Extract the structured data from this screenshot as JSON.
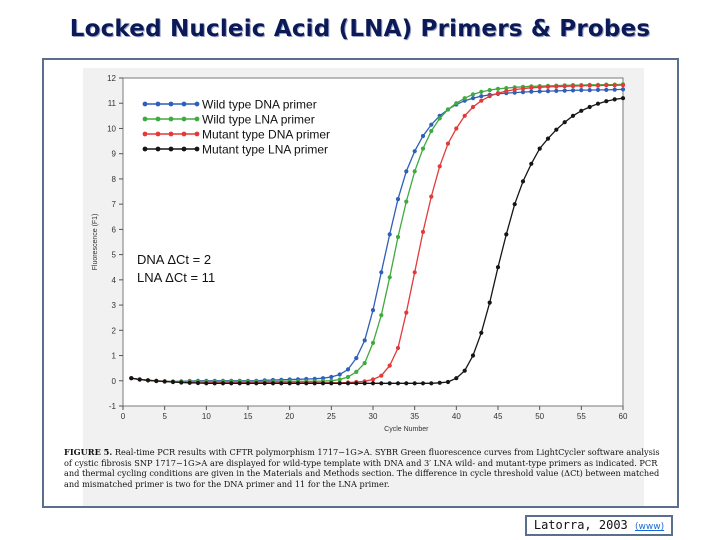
{
  "slide": {
    "title": "Locked Nucleic Acid (LNA) Primers & Probes",
    "citation": "Latorra, 2003",
    "citation_link": "(www)"
  },
  "caption": {
    "label": "FIGURE 5.",
    "text": "Real-time PCR results with CFTR polymorphism 1717−1G>A. SYBR Green fluorescence curves from LightCycler software analysis of cystic fibrosis SNP 1717−1G>A are displayed for wild-type template with DNA and 3′ LNA wild- and mutant-type primers as indicated. PCR and thermal cycling conditions are given in the Materials and Methods section. The difference in cycle threshold value (ΔCt) between matched and mismatched primer is two for the DNA primer and 11 for the LNA primer."
  },
  "colors": {
    "wild_dna": "#2f5fb8",
    "wild_lna": "#3faa3f",
    "mutant_dna": "#e23a3a",
    "mutant_lna": "#151515",
    "title": "#0b1a57",
    "frame": "#5a6f8e"
  },
  "chart_data": {
    "type": "line",
    "xlabel": "Cycle Number",
    "ylabel": "Fluorescence (F1)",
    "xlim": [
      0,
      60
    ],
    "ylim": [
      -1,
      12
    ],
    "xticks": [
      0,
      5,
      10,
      15,
      20,
      25,
      30,
      35,
      40,
      45,
      50,
      55,
      60
    ],
    "yticks": [
      -1,
      0,
      1,
      2,
      3,
      4,
      5,
      6,
      7,
      8,
      9,
      10,
      11,
      12
    ],
    "legend_position": "top-left",
    "grid": false,
    "annotations": [
      "DNA ΔCt = 2",
      "LNA ΔCt = 11"
    ],
    "series": [
      {
        "name": "Wild type DNA primer",
        "x": [
          1,
          2,
          3,
          4,
          5,
          6,
          7,
          8,
          9,
          10,
          11,
          12,
          13,
          14,
          15,
          16,
          17,
          18,
          19,
          20,
          21,
          22,
          23,
          24,
          25,
          26,
          27,
          28,
          29,
          30,
          31,
          32,
          33,
          34,
          35,
          36,
          37,
          38,
          39,
          40,
          41,
          42,
          43,
          44,
          45,
          46,
          47,
          48,
          49,
          50,
          51,
          52,
          53,
          54,
          55,
          56,
          57,
          58,
          59,
          60
        ],
        "y": [
          0.1,
          0.05,
          0.02,
          0,
          -0.02,
          -0.03,
          -0.02,
          -0.01,
          0,
          0,
          0,
          0,
          0,
          0,
          0,
          0,
          0.02,
          0.03,
          0.04,
          0.05,
          0.06,
          0.07,
          0.08,
          0.1,
          0.15,
          0.25,
          0.45,
          0.9,
          1.6,
          2.8,
          4.3,
          5.8,
          7.2,
          8.3,
          9.1,
          9.7,
          10.15,
          10.5,
          10.75,
          10.95,
          11.1,
          11.2,
          11.28,
          11.33,
          11.37,
          11.4,
          11.42,
          11.44,
          11.46,
          11.47,
          11.48,
          11.49,
          11.5,
          11.51,
          11.52,
          11.52,
          11.53,
          11.53,
          11.54,
          11.55
        ]
      },
      {
        "name": "Wild type LNA primer",
        "x": [
          1,
          2,
          3,
          4,
          5,
          6,
          7,
          8,
          9,
          10,
          11,
          12,
          13,
          14,
          15,
          16,
          17,
          18,
          19,
          20,
          21,
          22,
          23,
          24,
          25,
          26,
          27,
          28,
          29,
          30,
          31,
          32,
          33,
          34,
          35,
          36,
          37,
          38,
          39,
          40,
          41,
          42,
          43,
          44,
          45,
          46,
          47,
          48,
          49,
          50,
          51,
          52,
          53,
          54,
          55,
          56,
          57,
          58,
          59,
          60
        ],
        "y": [
          0.1,
          0.05,
          0.02,
          0,
          -0.02,
          -0.03,
          -0.03,
          -0.03,
          -0.03,
          -0.03,
          -0.03,
          -0.03,
          -0.03,
          -0.03,
          -0.03,
          -0.03,
          -0.03,
          -0.03,
          -0.03,
          -0.02,
          -0.02,
          -0.02,
          -0.02,
          -0.01,
          0,
          0.05,
          0.15,
          0.35,
          0.7,
          1.5,
          2.6,
          4.1,
          5.7,
          7.1,
          8.3,
          9.2,
          9.9,
          10.4,
          10.75,
          11.0,
          11.2,
          11.35,
          11.45,
          11.52,
          11.57,
          11.6,
          11.63,
          11.65,
          11.67,
          11.68,
          11.69,
          11.7,
          11.71,
          11.72,
          11.72,
          11.73,
          11.73,
          11.74,
          11.74,
          11.75
        ]
      },
      {
        "name": "Mutant type DNA primer",
        "x": [
          1,
          2,
          3,
          4,
          5,
          6,
          7,
          8,
          9,
          10,
          11,
          12,
          13,
          14,
          15,
          16,
          17,
          18,
          19,
          20,
          21,
          22,
          23,
          24,
          25,
          26,
          27,
          28,
          29,
          30,
          31,
          32,
          33,
          34,
          35,
          36,
          37,
          38,
          39,
          40,
          41,
          42,
          43,
          44,
          45,
          46,
          47,
          48,
          49,
          50,
          51,
          52,
          53,
          54,
          55,
          56,
          57,
          58,
          59,
          60
        ],
        "y": [
          0.1,
          0.05,
          0.02,
          -0.01,
          -0.03,
          -0.05,
          -0.06,
          -0.07,
          -0.08,
          -0.08,
          -0.08,
          -0.08,
          -0.08,
          -0.08,
          -0.08,
          -0.08,
          -0.08,
          -0.08,
          -0.08,
          -0.08,
          -0.08,
          -0.08,
          -0.08,
          -0.08,
          -0.08,
          -0.08,
          -0.07,
          -0.05,
          -0.02,
          0.05,
          0.2,
          0.6,
          1.3,
          2.7,
          4.3,
          5.9,
          7.3,
          8.5,
          9.4,
          10.0,
          10.5,
          10.85,
          11.1,
          11.28,
          11.4,
          11.48,
          11.54,
          11.58,
          11.61,
          11.63,
          11.65,
          11.66,
          11.67,
          11.68,
          11.69,
          11.7,
          11.7,
          11.71,
          11.71,
          11.72
        ]
      },
      {
        "name": "Mutant type LNA primer",
        "x": [
          1,
          2,
          3,
          4,
          5,
          6,
          7,
          8,
          9,
          10,
          11,
          12,
          13,
          14,
          15,
          16,
          17,
          18,
          19,
          20,
          21,
          22,
          23,
          24,
          25,
          26,
          27,
          28,
          29,
          30,
          31,
          32,
          33,
          34,
          35,
          36,
          37,
          38,
          39,
          40,
          41,
          42,
          43,
          44,
          45,
          46,
          47,
          48,
          49,
          50,
          51,
          52,
          53,
          54,
          55,
          56,
          57,
          58,
          59,
          60
        ],
        "y": [
          0.1,
          0.05,
          0.02,
          -0.01,
          -0.03,
          -0.05,
          -0.07,
          -0.08,
          -0.09,
          -0.1,
          -0.1,
          -0.1,
          -0.1,
          -0.1,
          -0.1,
          -0.1,
          -0.1,
          -0.1,
          -0.1,
          -0.1,
          -0.1,
          -0.1,
          -0.1,
          -0.1,
          -0.1,
          -0.1,
          -0.1,
          -0.1,
          -0.1,
          -0.1,
          -0.1,
          -0.1,
          -0.1,
          -0.1,
          -0.1,
          -0.1,
          -0.1,
          -0.08,
          -0.05,
          0.1,
          0.4,
          1.0,
          1.9,
          3.1,
          4.5,
          5.8,
          7.0,
          7.9,
          8.6,
          9.2,
          9.6,
          9.95,
          10.25,
          10.5,
          10.7,
          10.85,
          10.98,
          11.08,
          11.15,
          11.2
        ]
      }
    ]
  }
}
